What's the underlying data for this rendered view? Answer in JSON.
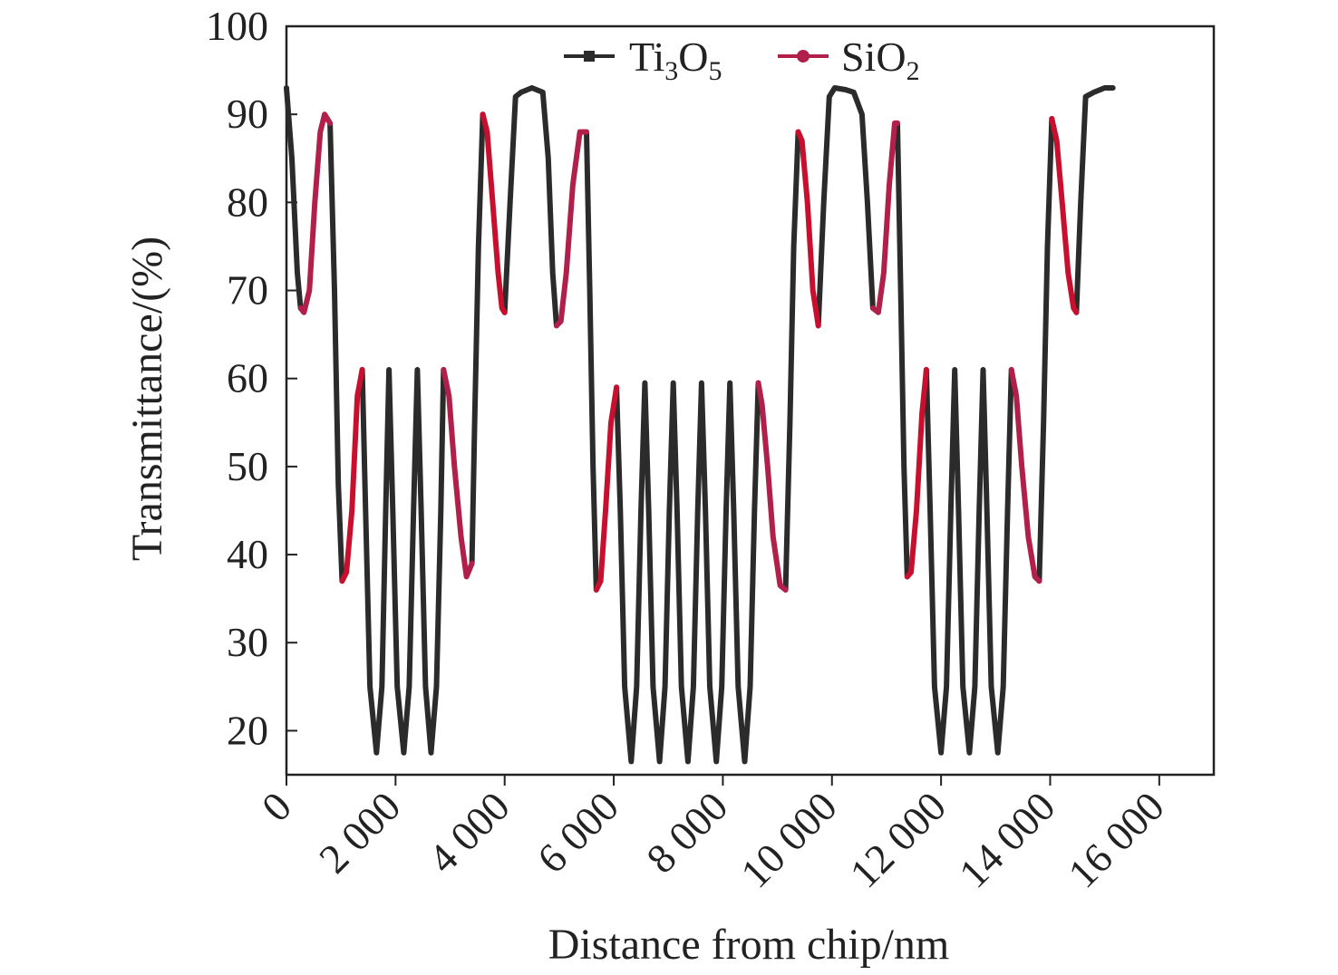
{
  "chart_data": {
    "type": "line",
    "title": "",
    "xlabel": "Distance from chip/nm",
    "ylabel": "Transmittance/(%)",
    "xlim": [
      0,
      17000
    ],
    "ylim": [
      15,
      100
    ],
    "x_ticks": [
      0,
      2000,
      4000,
      6000,
      8000,
      10000,
      12000,
      14000,
      16000
    ],
    "x_tick_labels": [
      "0",
      "2 000",
      "4 000",
      "6 000",
      "8 000",
      "10 000",
      "12 000",
      "14 000",
      "16 000"
    ],
    "y_ticks": [
      20,
      30,
      40,
      50,
      60,
      70,
      80,
      90,
      100
    ],
    "y_tick_labels": [
      "20",
      "30",
      "40",
      "50",
      "60",
      "70",
      "80",
      "90",
      "100"
    ],
    "legend": {
      "placement": "top-center",
      "entries": [
        {
          "base": "Ti",
          "sub1": "3",
          "mid": "O",
          "sub2": "5",
          "color": "#2b2b2b"
        },
        {
          "base": "SiO",
          "sub1": "2",
          "mid": "",
          "sub2": "",
          "color": "#b0204a"
        }
      ]
    },
    "colors": {
      "ti3o5": "#2b2b2b",
      "sio2": "#b0204a",
      "sio2_alt": "#c8102e"
    },
    "series": [
      {
        "name": "Ti3O5",
        "segments": [
          [
            [
              0,
              93
            ],
            [
              100,
              85
            ],
            [
              200,
              72
            ],
            [
              260,
              68
            ]
          ],
          [
            [
              800,
              89
            ],
            [
              880,
              70
            ],
            [
              950,
              48
            ],
            [
              1020,
              37
            ]
          ],
          [
            [
              1390,
              61
            ],
            [
              1450,
              45
            ],
            [
              1530,
              25
            ],
            [
              1650,
              17.5
            ],
            [
              1750,
              25
            ],
            [
              1820,
              45
            ],
            [
              1880,
              61
            ],
            [
              1950,
              45
            ],
            [
              2030,
              25
            ],
            [
              2150,
              17.5
            ],
            [
              2250,
              25
            ],
            [
              2330,
              45
            ],
            [
              2400,
              61
            ],
            [
              2470,
              45
            ],
            [
              2550,
              25
            ],
            [
              2650,
              17.5
            ],
            [
              2750,
              25
            ],
            [
              2830,
              45
            ],
            [
              2880,
              61
            ]
          ],
          [
            [
              3400,
              39
            ],
            [
              3450,
              55
            ],
            [
              3520,
              75
            ],
            [
              3600,
              90
            ]
          ],
          [
            [
              4000,
              67.5
            ],
            [
              4100,
              80
            ],
            [
              4200,
              92
            ],
            [
              4300,
              92.5
            ],
            [
              4500,
              93
            ],
            [
              4700,
              92.5
            ],
            [
              4800,
              85
            ],
            [
              4880,
              72
            ],
            [
              4950,
              66
            ]
          ],
          [
            [
              5500,
              88
            ],
            [
              5560,
              70
            ],
            [
              5620,
              50
            ],
            [
              5680,
              36
            ]
          ],
          [
            [
              6050,
              59
            ],
            [
              6120,
              45
            ],
            [
              6200,
              25
            ],
            [
              6320,
              16.5
            ],
            [
              6420,
              25
            ],
            [
              6500,
              45
            ],
            [
              6570,
              59.5
            ],
            [
              6640,
              45
            ],
            [
              6720,
              25
            ],
            [
              6840,
              16.5
            ],
            [
              6940,
              25
            ],
            [
              7020,
              45
            ],
            [
              7090,
              59.5
            ],
            [
              7160,
              45
            ],
            [
              7240,
              25
            ],
            [
              7360,
              16.5
            ],
            [
              7460,
              25
            ],
            [
              7540,
              45
            ],
            [
              7610,
              59.5
            ],
            [
              7680,
              45
            ],
            [
              7760,
              25
            ],
            [
              7880,
              16.5
            ],
            [
              7980,
              25
            ],
            [
              8060,
              45
            ],
            [
              8130,
              59.5
            ],
            [
              8200,
              45
            ],
            [
              8280,
              25
            ],
            [
              8400,
              16.5
            ],
            [
              8500,
              25
            ],
            [
              8580,
              45
            ],
            [
              8650,
              59.5
            ]
          ],
          [
            [
              9150,
              36
            ],
            [
              9230,
              55
            ],
            [
              9300,
              75
            ],
            [
              9380,
              88
            ]
          ],
          [
            [
              9750,
              66
            ],
            [
              9850,
              80
            ],
            [
              9950,
              92
            ],
            [
              10050,
              93
            ],
            [
              10250,
              92.8
            ],
            [
              10400,
              92.5
            ],
            [
              10550,
              90
            ],
            [
              10650,
              80
            ],
            [
              10750,
              68
            ]
          ],
          [
            [
              11200,
              89
            ],
            [
              11260,
              70
            ],
            [
              11320,
              50
            ],
            [
              11380,
              37.5
            ]
          ],
          [
            [
              11730,
              61
            ],
            [
              11800,
              45
            ],
            [
              11880,
              25
            ],
            [
              12000,
              17.5
            ],
            [
              12100,
              25
            ],
            [
              12180,
              45
            ],
            [
              12250,
              61
            ],
            [
              12320,
              45
            ],
            [
              12400,
              25
            ],
            [
              12520,
              17.5
            ],
            [
              12620,
              25
            ],
            [
              12700,
              45
            ],
            [
              12770,
              61
            ],
            [
              12840,
              45
            ],
            [
              12920,
              25
            ],
            [
              13040,
              17.5
            ],
            [
              13140,
              25
            ],
            [
              13220,
              45
            ],
            [
              13290,
              61
            ]
          ],
          [
            [
              13800,
              37
            ],
            [
              13880,
              55
            ],
            [
              13950,
              75
            ],
            [
              14030,
              89.5
            ]
          ],
          [
            [
              14480,
              67.5
            ],
            [
              14560,
              80
            ],
            [
              14650,
              92
            ],
            [
              14800,
              92.5
            ],
            [
              15000,
              93
            ],
            [
              15150,
              93
            ]
          ]
        ]
      },
      {
        "name": "SiO2",
        "segments": [
          [
            [
              260,
              68
            ],
            [
              320,
              67.5
            ],
            [
              420,
              70
            ],
            [
              520,
              80
            ],
            [
              620,
              88
            ],
            [
              700,
              90
            ],
            [
              800,
              89
            ]
          ],
          [
            [
              1020,
              37
            ],
            [
              1100,
              38
            ],
            [
              1200,
              45
            ],
            [
              1300,
              58
            ],
            [
              1390,
              61
            ]
          ],
          [
            [
              2880,
              61
            ],
            [
              2980,
              58
            ],
            [
              3080,
              50
            ],
            [
              3200,
              42
            ],
            [
              3300,
              37.5
            ],
            [
              3400,
              39
            ]
          ],
          [
            [
              3600,
              90
            ],
            [
              3680,
              88
            ],
            [
              3780,
              80
            ],
            [
              3880,
              72
            ],
            [
              3950,
              68
            ],
            [
              4000,
              67.5
            ]
          ],
          [
            [
              4950,
              66
            ],
            [
              5030,
              66.5
            ],
            [
              5130,
              72
            ],
            [
              5250,
              82
            ],
            [
              5380,
              88
            ],
            [
              5500,
              88
            ]
          ],
          [
            [
              5680,
              36
            ],
            [
              5760,
              37
            ],
            [
              5850,
              45
            ],
            [
              5950,
              55
            ],
            [
              6050,
              59
            ]
          ],
          [
            [
              8650,
              59.5
            ],
            [
              8720,
              57
            ],
            [
              8820,
              50
            ],
            [
              8920,
              42
            ],
            [
              9050,
              36.5
            ],
            [
              9150,
              36
            ]
          ],
          [
            [
              9380,
              88
            ],
            [
              9450,
              87
            ],
            [
              9550,
              80
            ],
            [
              9650,
              70
            ],
            [
              9750,
              66
            ]
          ],
          [
            [
              10750,
              68
            ],
            [
              10850,
              67.5
            ],
            [
              10950,
              72
            ],
            [
              11050,
              82
            ],
            [
              11150,
              89
            ],
            [
              11200,
              89
            ]
          ],
          [
            [
              11380,
              37.5
            ],
            [
              11450,
              38
            ],
            [
              11550,
              45
            ],
            [
              11650,
              56
            ],
            [
              11730,
              61
            ]
          ],
          [
            [
              13290,
              61
            ],
            [
              13380,
              58
            ],
            [
              13480,
              50
            ],
            [
              13600,
              42
            ],
            [
              13720,
              37.5
            ],
            [
              13800,
              37
            ]
          ],
          [
            [
              14030,
              89.5
            ],
            [
              14120,
              87
            ],
            [
              14220,
              80
            ],
            [
              14330,
              72
            ],
            [
              14430,
              68
            ],
            [
              14480,
              67.5
            ]
          ]
        ]
      }
    ]
  }
}
